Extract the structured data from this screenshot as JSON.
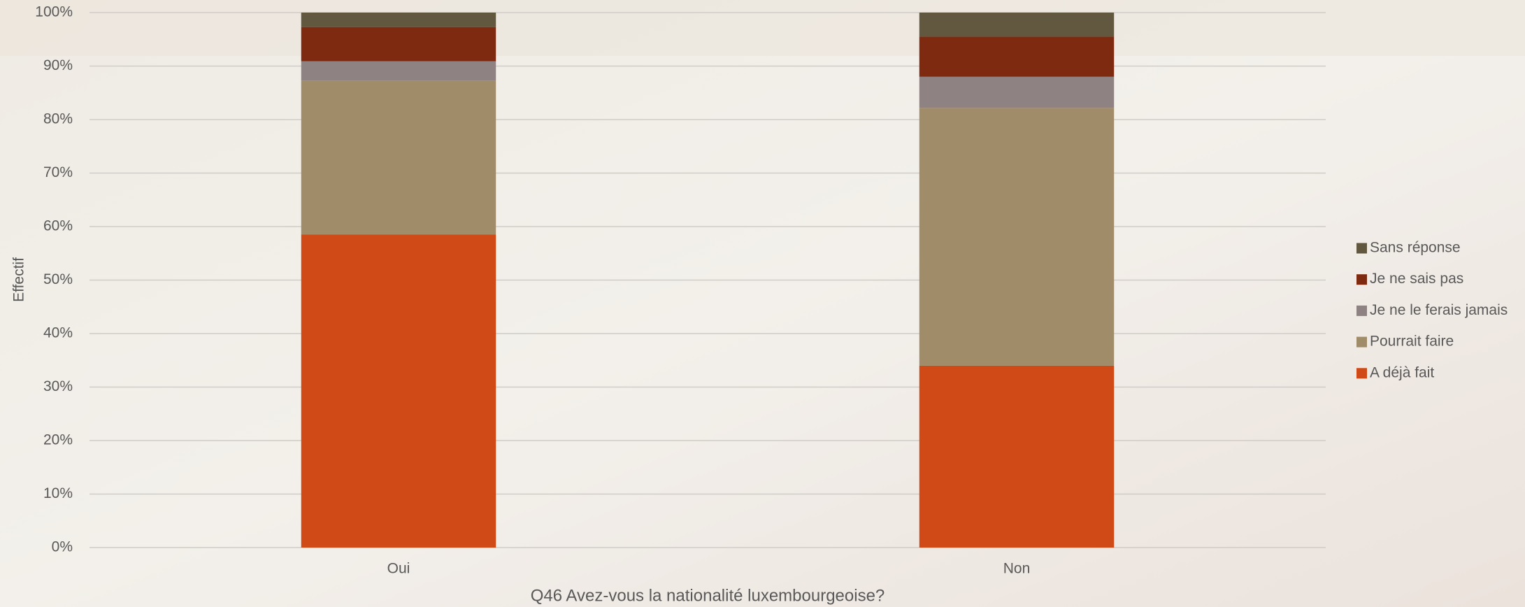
{
  "chart_data": {
    "type": "stacked_bar",
    "x_label": "Q46 Avez-vous la nationalité luxembourgeoise?",
    "y_label": "Effectif",
    "categories": [
      "Oui",
      "Non"
    ],
    "series": [
      {
        "name": "A déjà fait",
        "color": "#d04a17",
        "values": [
          58.5,
          34.0
        ]
      },
      {
        "name": "Pourrait faire",
        "color": "#a18c6a",
        "values": [
          28.8,
          48.2
        ]
      },
      {
        "name": "Je ne le ferais jamais",
        "color": "#8e8282",
        "values": [
          3.6,
          5.8
        ]
      },
      {
        "name": "Je ne sais pas",
        "color": "#7e2a10",
        "values": [
          6.4,
          7.5
        ]
      },
      {
        "name": "Sans réponse",
        "color": "#625840",
        "values": [
          2.7,
          4.5
        ]
      }
    ],
    "ylim": [
      0,
      100
    ],
    "yticks": [
      {
        "value": 0,
        "label": "0%"
      },
      {
        "value": 10,
        "label": "10%"
      },
      {
        "value": 20,
        "label": "20%"
      },
      {
        "value": 30,
        "label": "30%"
      },
      {
        "value": 40,
        "label": "40%"
      },
      {
        "value": 50,
        "label": "50%"
      },
      {
        "value": 60,
        "label": "60%"
      },
      {
        "value": 70,
        "label": "70%"
      },
      {
        "value": 80,
        "label": "80%"
      },
      {
        "value": 90,
        "label": "90%"
      },
      {
        "value": 100,
        "label": "100%"
      }
    ],
    "grid": true,
    "legend": "right"
  }
}
